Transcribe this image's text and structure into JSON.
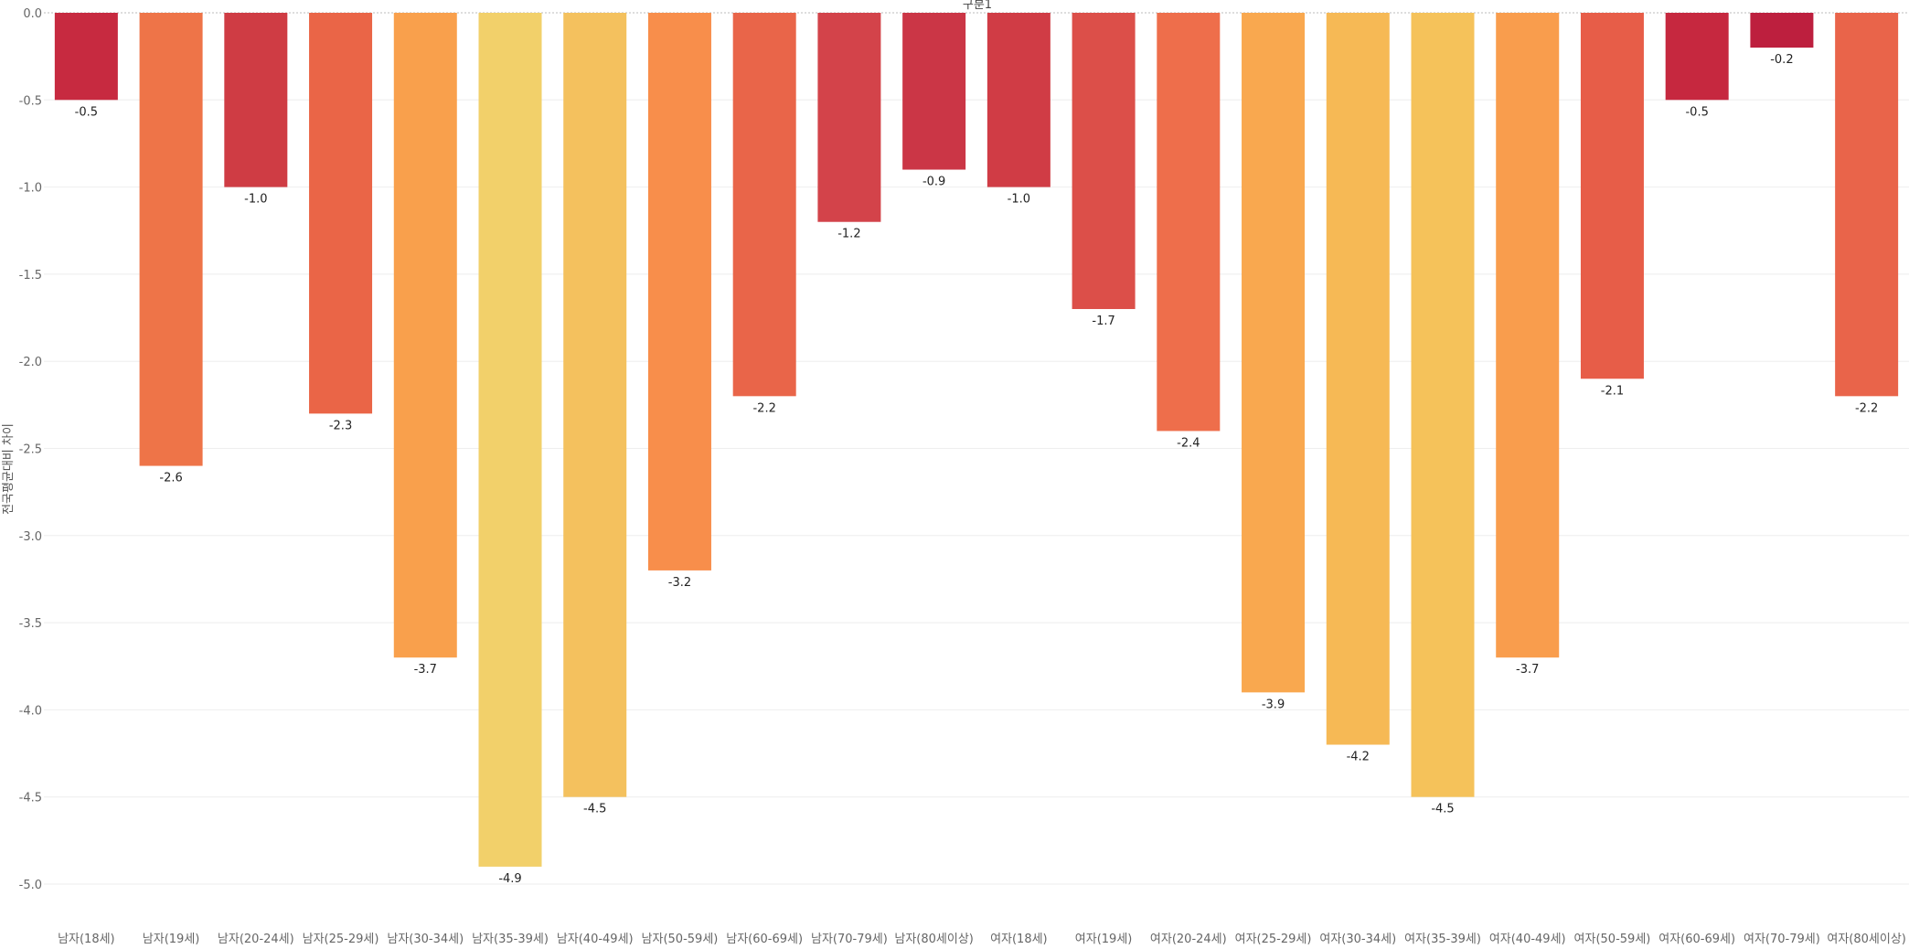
{
  "chart_data": {
    "type": "bar",
    "title": "구분1",
    "xlabel": "",
    "ylabel": "전국평균대비 차이",
    "ylim": [
      -5.2,
      0.0
    ],
    "yticks": [
      0.0,
      -0.5,
      -1.0,
      -1.5,
      -2.0,
      -2.5,
      -3.0,
      -3.5,
      -4.0,
      -4.5,
      -5.0
    ],
    "ytick_labels": [
      "0.0",
      "-0.5",
      "-1.0",
      "-1.5",
      "-2.0",
      "-2.5",
      "-3.0",
      "-3.5",
      "-4.0",
      "-4.5",
      "-5.0"
    ],
    "categories": [
      "남자(18세)",
      "남자(19세)",
      "남자(20-24세)",
      "남자(25-29세)",
      "남자(30-34세)",
      "남자(35-39세)",
      "남자(40-49세)",
      "남자(50-59세)",
      "남자(60-69세)",
      "남자(70-79세)",
      "남자(80세이상)",
      "여자(18세)",
      "여자(19세)",
      "여자(20-24세)",
      "여자(25-29세)",
      "여자(30-34세)",
      "여자(35-39세)",
      "여자(40-49세)",
      "여자(50-59세)",
      "여자(60-69세)",
      "여자(70-79세)",
      "여자(80세이상)"
    ],
    "values": [
      -0.5,
      -2.6,
      -1.0,
      -2.3,
      -3.7,
      -4.9,
      -4.5,
      -3.2,
      -2.2,
      -1.2,
      -0.9,
      -1.0,
      -1.7,
      -2.4,
      -3.9,
      -4.2,
      -4.5,
      -3.7,
      -2.1,
      -0.5,
      -0.2,
      -2.2
    ],
    "value_labels": [
      "-0.5",
      "-2.6",
      "-1.0",
      "-2.3",
      "-3.7",
      "-4.9",
      "-4.5",
      "-3.2",
      "-2.2",
      "-1.2",
      "-0.9",
      "-1.0",
      "-1.7",
      "-2.4",
      "-3.9",
      "-4.2",
      "-4.5",
      "-3.7",
      "-2.1",
      "-0.5",
      "-0.2",
      "-2.2"
    ],
    "colors": [
      "#c72a40",
      "#ee7448",
      "#cf3c44",
      "#ea6547",
      "#f9a04c",
      "#f2d06a",
      "#f4c15e",
      "#f88e4b",
      "#e96549",
      "#d3434a",
      "#cb3646",
      "#d03c45",
      "#dc4f49",
      "#ee6e4b",
      "#f9a84f",
      "#f6b955",
      "#f5c25a",
      "#f99d4d",
      "#e75d48",
      "#c6283f",
      "#bd1f3e",
      "#e9644a"
    ],
    "grid": true,
    "legend": "none"
  }
}
